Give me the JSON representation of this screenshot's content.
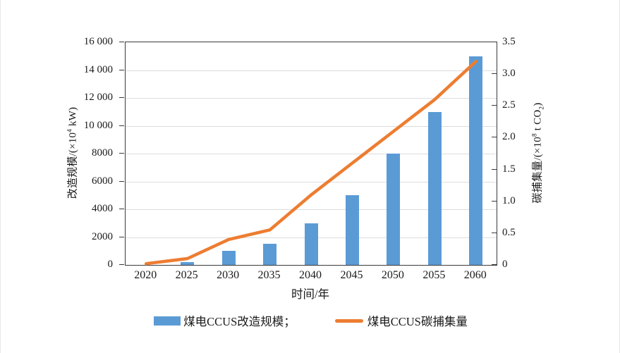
{
  "chart_data": {
    "type": "combo-bar-line",
    "categories": [
      "2020",
      "2025",
      "2030",
      "2035",
      "2040",
      "2045",
      "2050",
      "2055",
      "2060"
    ],
    "series": [
      {
        "name": "煤电CCUS改造规模",
        "type": "bar",
        "axis": "left",
        "color": "#5B9BD5",
        "values": [
          0,
          200,
          1000,
          1500,
          3000,
          5000,
          8000,
          11000,
          15000
        ]
      },
      {
        "name": "煤电CCUS碳捕集量",
        "type": "line",
        "axis": "right",
        "color": "#ED7D31",
        "values": [
          0.02,
          0.1,
          0.4,
          0.55,
          1.1,
          1.6,
          2.1,
          2.6,
          3.2
        ]
      }
    ],
    "left_axis": {
      "min": 0,
      "max": 16000,
      "tick_values": [
        0,
        2000,
        4000,
        6000,
        8000,
        10000,
        12000,
        14000,
        16000
      ],
      "tick_labels": [
        "0",
        "2000",
        "4000",
        "6000",
        "8000",
        "10 000",
        "12 000",
        "14 000",
        "16 000"
      ],
      "title": {
        "pre": "改造规模/(×10",
        "sup": "4",
        "post": " kW)"
      }
    },
    "right_axis": {
      "min": 0,
      "max": 3.5,
      "tick_values": [
        0,
        0.5,
        1.0,
        1.5,
        2.0,
        2.5,
        3.0,
        3.5
      ],
      "tick_labels": [
        "0",
        "0.5",
        "1.0",
        "1.5",
        "2.0",
        "2.5",
        "3.0",
        "3.5"
      ],
      "title": {
        "pre": "碳捕集量/(×10",
        "sup": "8",
        "mid": " t CO",
        "sub": "2",
        "post": ")"
      }
    },
    "x_axis": {
      "title": "时间/年"
    },
    "legend": [
      {
        "label": "煤电CCUS改造规模；",
        "swatch": "bar",
        "color": "#5B9BD5"
      },
      {
        "label": "煤电CCUS碳捕集量",
        "swatch": "line",
        "color": "#ED7D31"
      }
    ],
    "grid": {
      "horizontal": true,
      "color": "#dcdcdc"
    }
  }
}
